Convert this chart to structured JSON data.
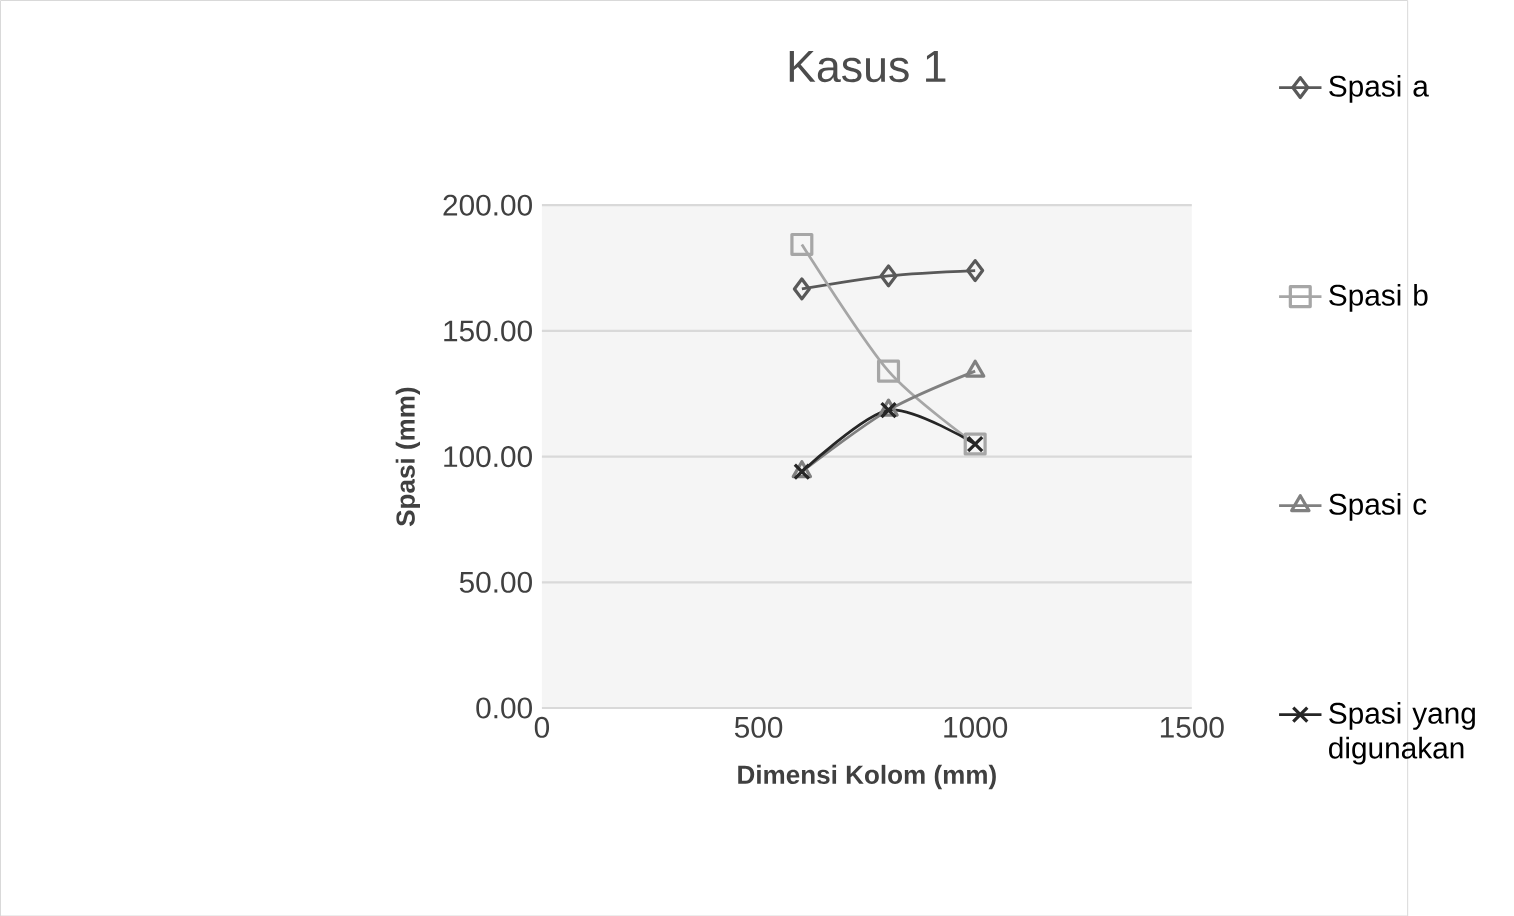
{
  "chart_data": {
    "type": "line",
    "title": "Kasus 1",
    "xlabel": "Dimensi Kolom (mm)",
    "ylabel": "Spasi (mm)",
    "xlim": [
      0,
      1500
    ],
    "xticks": [
      0,
      500,
      1000,
      1500
    ],
    "ylim": [
      0,
      200
    ],
    "yticks": [
      {
        "value": 0,
        "label": "0.00"
      },
      {
        "value": 50,
        "label": "50.00"
      },
      {
        "value": 100,
        "label": "100.00"
      },
      {
        "value": 150,
        "label": "150.00"
      },
      {
        "value": 200,
        "label": "200.00"
      }
    ],
    "grid": "y",
    "legend": "right",
    "line_style": "solid",
    "series": [
      {
        "name": "Spasi a",
        "color": "#595959",
        "marker": "diamond",
        "x": [
          600,
          800,
          1000
        ],
        "values": [
          166.7,
          171.9,
          174
        ]
      },
      {
        "name": "Spasi b",
        "color": "#a6a6a6",
        "marker": "square",
        "x": [
          600,
          800,
          1000
        ],
        "values": [
          184.4,
          134,
          105
        ]
      },
      {
        "name": "Spasi c",
        "color": "#808080",
        "marker": "triangle",
        "x": [
          600,
          800,
          1000
        ],
        "values": [
          94,
          118.5,
          134
        ]
      },
      {
        "name": "Spasi yang digunakan",
        "color": "#262626",
        "marker": "cross",
        "x": [
          600,
          800,
          1000
        ],
        "values": [
          94,
          118.5,
          105
        ]
      }
    ]
  }
}
